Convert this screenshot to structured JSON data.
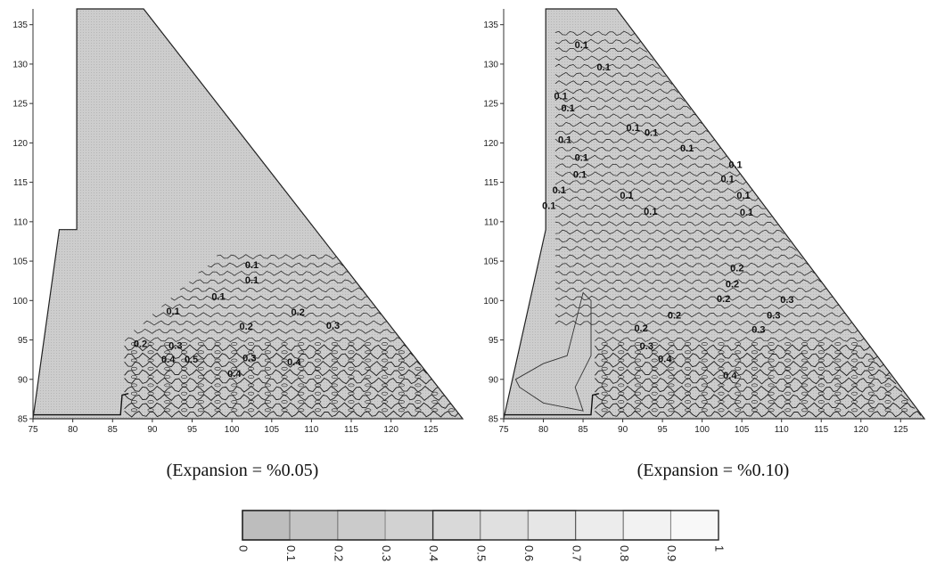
{
  "chart_data": [
    {
      "type": "contour",
      "caption": "(Expansion = %0.05)",
      "xlim": [
        75,
        129
      ],
      "ylim": [
        85,
        137
      ],
      "xticks": [
        75,
        80,
        85,
        90,
        95,
        100,
        105,
        110,
        115,
        120,
        125
      ],
      "yticks": [
        85,
        90,
        95,
        100,
        105,
        110,
        115,
        120,
        125,
        130,
        135
      ],
      "outline": [
        [
          75,
          85
        ],
        [
          78.3,
          109
        ],
        [
          80.5,
          109
        ],
        [
          80.5,
          137
        ],
        [
          88.9,
          137
        ],
        [
          129,
          85
        ]
      ],
      "levels_note": "damage contour lines",
      "contour_labels": [
        {
          "text": "0.1",
          "x": 102.5,
          "y": 104.1
        },
        {
          "text": "0.1",
          "x": 102.5,
          "y": 102.2
        },
        {
          "text": "0.1",
          "x": 98.3,
          "y": 100.1
        },
        {
          "text": "0.1",
          "x": 92.6,
          "y": 98.2
        },
        {
          "text": "0.2",
          "x": 108.3,
          "y": 98.1
        },
        {
          "text": "0.2",
          "x": 101.8,
          "y": 96.3
        },
        {
          "text": "0.3",
          "x": 112.7,
          "y": 96.4
        },
        {
          "text": "0.2",
          "x": 88.5,
          "y": 94.1
        },
        {
          "text": "0.3",
          "x": 92.9,
          "y": 93.9
        },
        {
          "text": "0.3",
          "x": 102.2,
          "y": 92.3
        },
        {
          "text": "0.4",
          "x": 107.8,
          "y": 91.8
        },
        {
          "text": "0.4",
          "x": 100.3,
          "y": 90.3
        },
        {
          "text": "0.4",
          "x": 92.0,
          "y": 92.1
        },
        {
          "text": "0.5",
          "x": 94.9,
          "y": 92.1
        }
      ]
    },
    {
      "type": "contour",
      "caption": "(Expansion = %0.10)",
      "xlim": [
        75,
        128
      ],
      "ylim": [
        85,
        137
      ],
      "xticks": [
        75,
        80,
        85,
        90,
        95,
        100,
        105,
        110,
        115,
        120,
        125
      ],
      "yticks": [
        85,
        90,
        95,
        100,
        105,
        110,
        115,
        120,
        125,
        130,
        135
      ],
      "outline": [
        [
          75,
          85
        ],
        [
          80.3,
          109
        ],
        [
          80.3,
          137
        ],
        [
          89.2,
          137
        ],
        [
          128,
          85
        ]
      ],
      "levels_note": "damage contour lines",
      "contour_labels": [
        {
          "text": "0.1",
          "x": 84.8,
          "y": 132.0
        },
        {
          "text": "0.1",
          "x": 87.6,
          "y": 129.2
        },
        {
          "text": "0.1",
          "x": 82.2,
          "y": 125.5
        },
        {
          "text": "0.1",
          "x": 83.1,
          "y": 124.0
        },
        {
          "text": "0.1",
          "x": 91.3,
          "y": 121.5
        },
        {
          "text": "0.1",
          "x": 93.6,
          "y": 120.9
        },
        {
          "text": "0.1",
          "x": 82.7,
          "y": 120.0
        },
        {
          "text": "0.1",
          "x": 98.1,
          "y": 118.9
        },
        {
          "text": "0.1",
          "x": 84.8,
          "y": 117.7
        },
        {
          "text": "0.1",
          "x": 84.6,
          "y": 115.6
        },
        {
          "text": "0.1",
          "x": 104.2,
          "y": 116.8
        },
        {
          "text": "0.1",
          "x": 103.2,
          "y": 115.0
        },
        {
          "text": "0.1",
          "x": 82.0,
          "y": 113.6
        },
        {
          "text": "0.1",
          "x": 90.5,
          "y": 112.9
        },
        {
          "text": "0.1",
          "x": 105.2,
          "y": 112.9
        },
        {
          "text": "0.1",
          "x": 80.7,
          "y": 111.6
        },
        {
          "text": "0.1",
          "x": 93.5,
          "y": 110.9
        },
        {
          "text": "0.1",
          "x": 105.6,
          "y": 110.8
        },
        {
          "text": "0.2",
          "x": 104.4,
          "y": 103.7
        },
        {
          "text": "0.2",
          "x": 103.8,
          "y": 101.7
        },
        {
          "text": "0.2",
          "x": 102.7,
          "y": 99.8
        },
        {
          "text": "0.3",
          "x": 110.7,
          "y": 99.7
        },
        {
          "text": "0.2",
          "x": 96.5,
          "y": 97.7
        },
        {
          "text": "0.3",
          "x": 109.0,
          "y": 97.7
        },
        {
          "text": "0.2",
          "x": 92.3,
          "y": 96.1
        },
        {
          "text": "0.3",
          "x": 107.1,
          "y": 95.9
        },
        {
          "text": "0.3",
          "x": 93.0,
          "y": 93.8
        },
        {
          "text": "0.4",
          "x": 95.3,
          "y": 92.2
        },
        {
          "text": "0.4",
          "x": 103.5,
          "y": 90.1
        }
      ]
    }
  ],
  "colorbar": {
    "ticks": [
      "0",
      "0.1",
      "0.2",
      "0.3",
      "0.4",
      "0.5",
      "0.6",
      "0.7",
      "0.8",
      "0.9",
      "1"
    ],
    "colors": [
      "#bdbdbd",
      "#c4c4c4",
      "#cbcbcb",
      "#d2d2d2",
      "#d9d9d9",
      "#e0e0e0",
      "#e6e6e6",
      "#ececec",
      "#f2f2f2",
      "#f8f8f8"
    ]
  },
  "style": {
    "fill": "#c8c8c8",
    "line": "#1a1a1a"
  }
}
